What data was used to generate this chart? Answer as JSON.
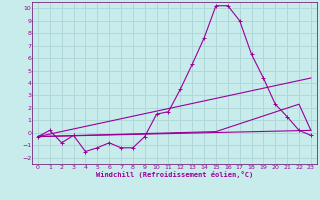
{
  "xlabel": "Windchill (Refroidissement éolien,°C)",
  "bg_color": "#c8ecec",
  "grid_color": "#b0d8d8",
  "line_color": "#990099",
  "spine_color": "#660066",
  "xlim": [
    -0.5,
    23.5
  ],
  "ylim": [
    -2.5,
    10.5
  ],
  "xticks": [
    0,
    1,
    2,
    3,
    4,
    5,
    6,
    7,
    8,
    9,
    10,
    11,
    12,
    13,
    14,
    15,
    16,
    17,
    18,
    19,
    20,
    21,
    22,
    23
  ],
  "yticks": [
    -2,
    -1,
    0,
    1,
    2,
    3,
    4,
    5,
    6,
    7,
    8,
    9,
    10
  ],
  "main_series": [
    [
      0,
      -0.3
    ],
    [
      1,
      0.2
    ],
    [
      2,
      -0.8
    ],
    [
      3,
      -0.2
    ],
    [
      4,
      -1.5
    ],
    [
      5,
      -1.2
    ],
    [
      6,
      -0.8
    ],
    [
      7,
      -1.2
    ],
    [
      8,
      -1.2
    ],
    [
      9,
      -0.3
    ],
    [
      10,
      1.5
    ],
    [
      11,
      1.7
    ],
    [
      12,
      3.5
    ],
    [
      13,
      5.5
    ],
    [
      14,
      7.6
    ],
    [
      15,
      10.2
    ],
    [
      16,
      10.2
    ],
    [
      17,
      9.0
    ],
    [
      18,
      6.3
    ],
    [
      19,
      4.4
    ],
    [
      20,
      2.3
    ],
    [
      21,
      1.3
    ],
    [
      22,
      0.2
    ],
    [
      23,
      -0.2
    ]
  ],
  "line2": [
    [
      0,
      -0.3
    ],
    [
      23,
      4.4
    ]
  ],
  "line3": [
    [
      0,
      -0.3
    ],
    [
      23,
      0.2
    ]
  ],
  "line4": [
    [
      0,
      -0.3
    ],
    [
      15,
      0.1
    ],
    [
      22,
      2.3
    ],
    [
      23,
      0.2
    ]
  ]
}
